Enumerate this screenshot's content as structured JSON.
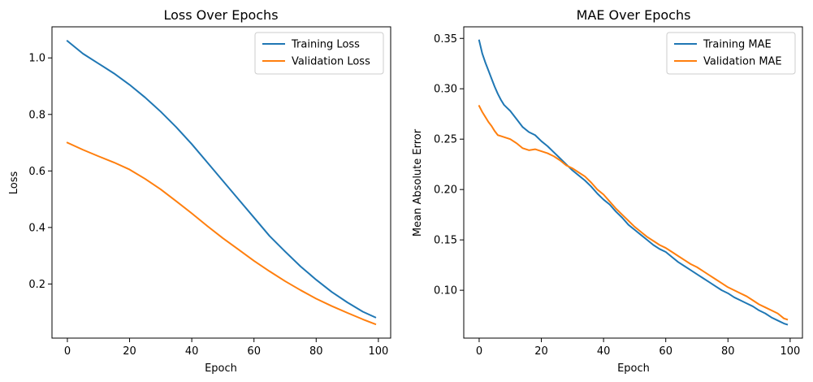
{
  "chart_data": [
    {
      "type": "line",
      "title": "Loss Over Epochs",
      "xlabel": "Epoch",
      "ylabel": "Loss",
      "xlim": [
        -4.95,
        103.95
      ],
      "ylim": [
        0.0085,
        1.11
      ],
      "xticks": [
        0,
        20,
        40,
        60,
        80,
        100
      ],
      "xtick_labels": [
        "0",
        "20",
        "40",
        "60",
        "80",
        "100"
      ],
      "yticks": [
        0.2,
        0.4,
        0.6,
        0.8,
        1.0
      ],
      "ytick_labels": [
        "0.2",
        "0.4",
        "0.6",
        "0.8",
        "1.0"
      ],
      "grid": false,
      "legend_position": "top-right",
      "series": [
        {
          "name": "Training Loss",
          "color": "#1f77b4",
          "x": [
            0,
            5,
            10,
            15,
            20,
            25,
            30,
            35,
            40,
            45,
            50,
            55,
            60,
            65,
            70,
            75,
            80,
            85,
            90,
            95,
            99
          ],
          "y": [
            1.06,
            1.015,
            0.98,
            0.945,
            0.905,
            0.86,
            0.81,
            0.755,
            0.695,
            0.63,
            0.565,
            0.5,
            0.435,
            0.37,
            0.315,
            0.262,
            0.215,
            0.172,
            0.135,
            0.102,
            0.082
          ]
        },
        {
          "name": "Validation Loss",
          "color": "#ff7f0e",
          "x": [
            0,
            5,
            10,
            15,
            20,
            25,
            30,
            35,
            40,
            45,
            50,
            55,
            60,
            65,
            70,
            75,
            80,
            85,
            90,
            95,
            99
          ],
          "y": [
            0.7,
            0.675,
            0.652,
            0.63,
            0.605,
            0.572,
            0.535,
            0.493,
            0.45,
            0.405,
            0.362,
            0.322,
            0.282,
            0.245,
            0.21,
            0.178,
            0.148,
            0.122,
            0.098,
            0.075,
            0.058
          ]
        }
      ]
    },
    {
      "type": "line",
      "title": "MAE Over Epochs",
      "xlabel": "Epoch",
      "ylabel": "Mean Absolute Error",
      "xlim": [
        -4.95,
        103.95
      ],
      "ylim": [
        0.0525,
        0.3615
      ],
      "xticks": [
        0,
        20,
        40,
        60,
        80,
        100
      ],
      "xtick_labels": [
        "0",
        "20",
        "40",
        "60",
        "80",
        "100"
      ],
      "yticks": [
        0.1,
        0.15,
        0.2,
        0.25,
        0.3,
        0.35
      ],
      "ytick_labels": [
        "0.10",
        "0.15",
        "0.20",
        "0.25",
        "0.30",
        "0.35"
      ],
      "grid": false,
      "legend_position": "top-right",
      "series": [
        {
          "name": "Training MAE",
          "color": "#1f77b4",
          "x": [
            0,
            1,
            2,
            3,
            4,
            5,
            6,
            7,
            8,
            9,
            10,
            12,
            14,
            16,
            18,
            20,
            22,
            24,
            26,
            28,
            30,
            32,
            34,
            36,
            38,
            40,
            42,
            44,
            46,
            48,
            50,
            52,
            54,
            56,
            58,
            60,
            62,
            64,
            66,
            68,
            70,
            72,
            74,
            76,
            78,
            80,
            82,
            84,
            86,
            88,
            90,
            92,
            94,
            96,
            98,
            99
          ],
          "y": [
            0.348,
            0.335,
            0.326,
            0.318,
            0.31,
            0.302,
            0.295,
            0.289,
            0.284,
            0.281,
            0.278,
            0.27,
            0.262,
            0.257,
            0.254,
            0.248,
            0.243,
            0.237,
            0.231,
            0.225,
            0.219,
            0.214,
            0.209,
            0.203,
            0.196,
            0.19,
            0.185,
            0.178,
            0.172,
            0.165,
            0.16,
            0.155,
            0.15,
            0.145,
            0.141,
            0.138,
            0.133,
            0.128,
            0.124,
            0.12,
            0.116,
            0.112,
            0.108,
            0.104,
            0.1,
            0.097,
            0.093,
            0.09,
            0.087,
            0.084,
            0.08,
            0.077,
            0.073,
            0.07,
            0.067,
            0.066
          ]
        },
        {
          "name": "Validation MAE",
          "color": "#ff7f0e",
          "x": [
            0,
            1,
            2,
            3,
            4,
            5,
            6,
            7,
            8,
            9,
            10,
            12,
            14,
            16,
            18,
            20,
            22,
            24,
            26,
            28,
            30,
            32,
            34,
            36,
            38,
            40,
            42,
            44,
            46,
            48,
            50,
            52,
            54,
            56,
            58,
            60,
            62,
            64,
            66,
            68,
            70,
            72,
            74,
            76,
            78,
            80,
            82,
            84,
            86,
            88,
            90,
            92,
            94,
            96,
            98,
            99
          ],
          "y": [
            0.283,
            0.277,
            0.272,
            0.267,
            0.263,
            0.258,
            0.254,
            0.253,
            0.252,
            0.251,
            0.25,
            0.246,
            0.241,
            0.239,
            0.24,
            0.238,
            0.236,
            0.233,
            0.229,
            0.224,
            0.221,
            0.217,
            0.213,
            0.207,
            0.2,
            0.195,
            0.188,
            0.181,
            0.175,
            0.169,
            0.163,
            0.158,
            0.153,
            0.149,
            0.145,
            0.142,
            0.138,
            0.134,
            0.13,
            0.126,
            0.123,
            0.119,
            0.115,
            0.111,
            0.107,
            0.103,
            0.1,
            0.097,
            0.094,
            0.09,
            0.086,
            0.083,
            0.08,
            0.077,
            0.072,
            0.071
          ]
        }
      ]
    }
  ]
}
